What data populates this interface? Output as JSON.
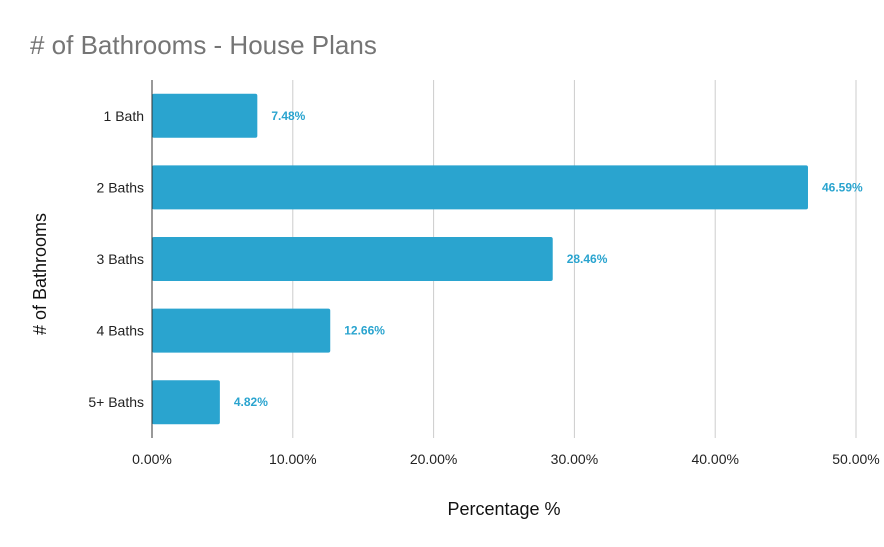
{
  "chart_data": {
    "type": "bar",
    "orientation": "horizontal",
    "title": "# of Bathrooms - House Plans",
    "xlabel": "Percentage %",
    "ylabel": "# of Bathrooms",
    "categories": [
      "1 Bath",
      "2 Baths",
      "3 Baths",
      "4 Baths",
      "5+ Baths"
    ],
    "values": [
      7.48,
      46.59,
      28.46,
      12.66,
      4.82
    ],
    "data_labels": [
      "7.48%",
      "46.59%",
      "28.46%",
      "12.66%",
      "4.82%"
    ],
    "xlim": [
      0,
      50
    ],
    "xticks": [
      0,
      10,
      20,
      30,
      40,
      50
    ],
    "xtick_labels": [
      "0.00%",
      "10.00%",
      "20.00%",
      "30.00%",
      "40.00%",
      "50.00%"
    ],
    "grid": true,
    "bar_color": "#2aa4cf",
    "label_color": "#2aa4cf"
  }
}
